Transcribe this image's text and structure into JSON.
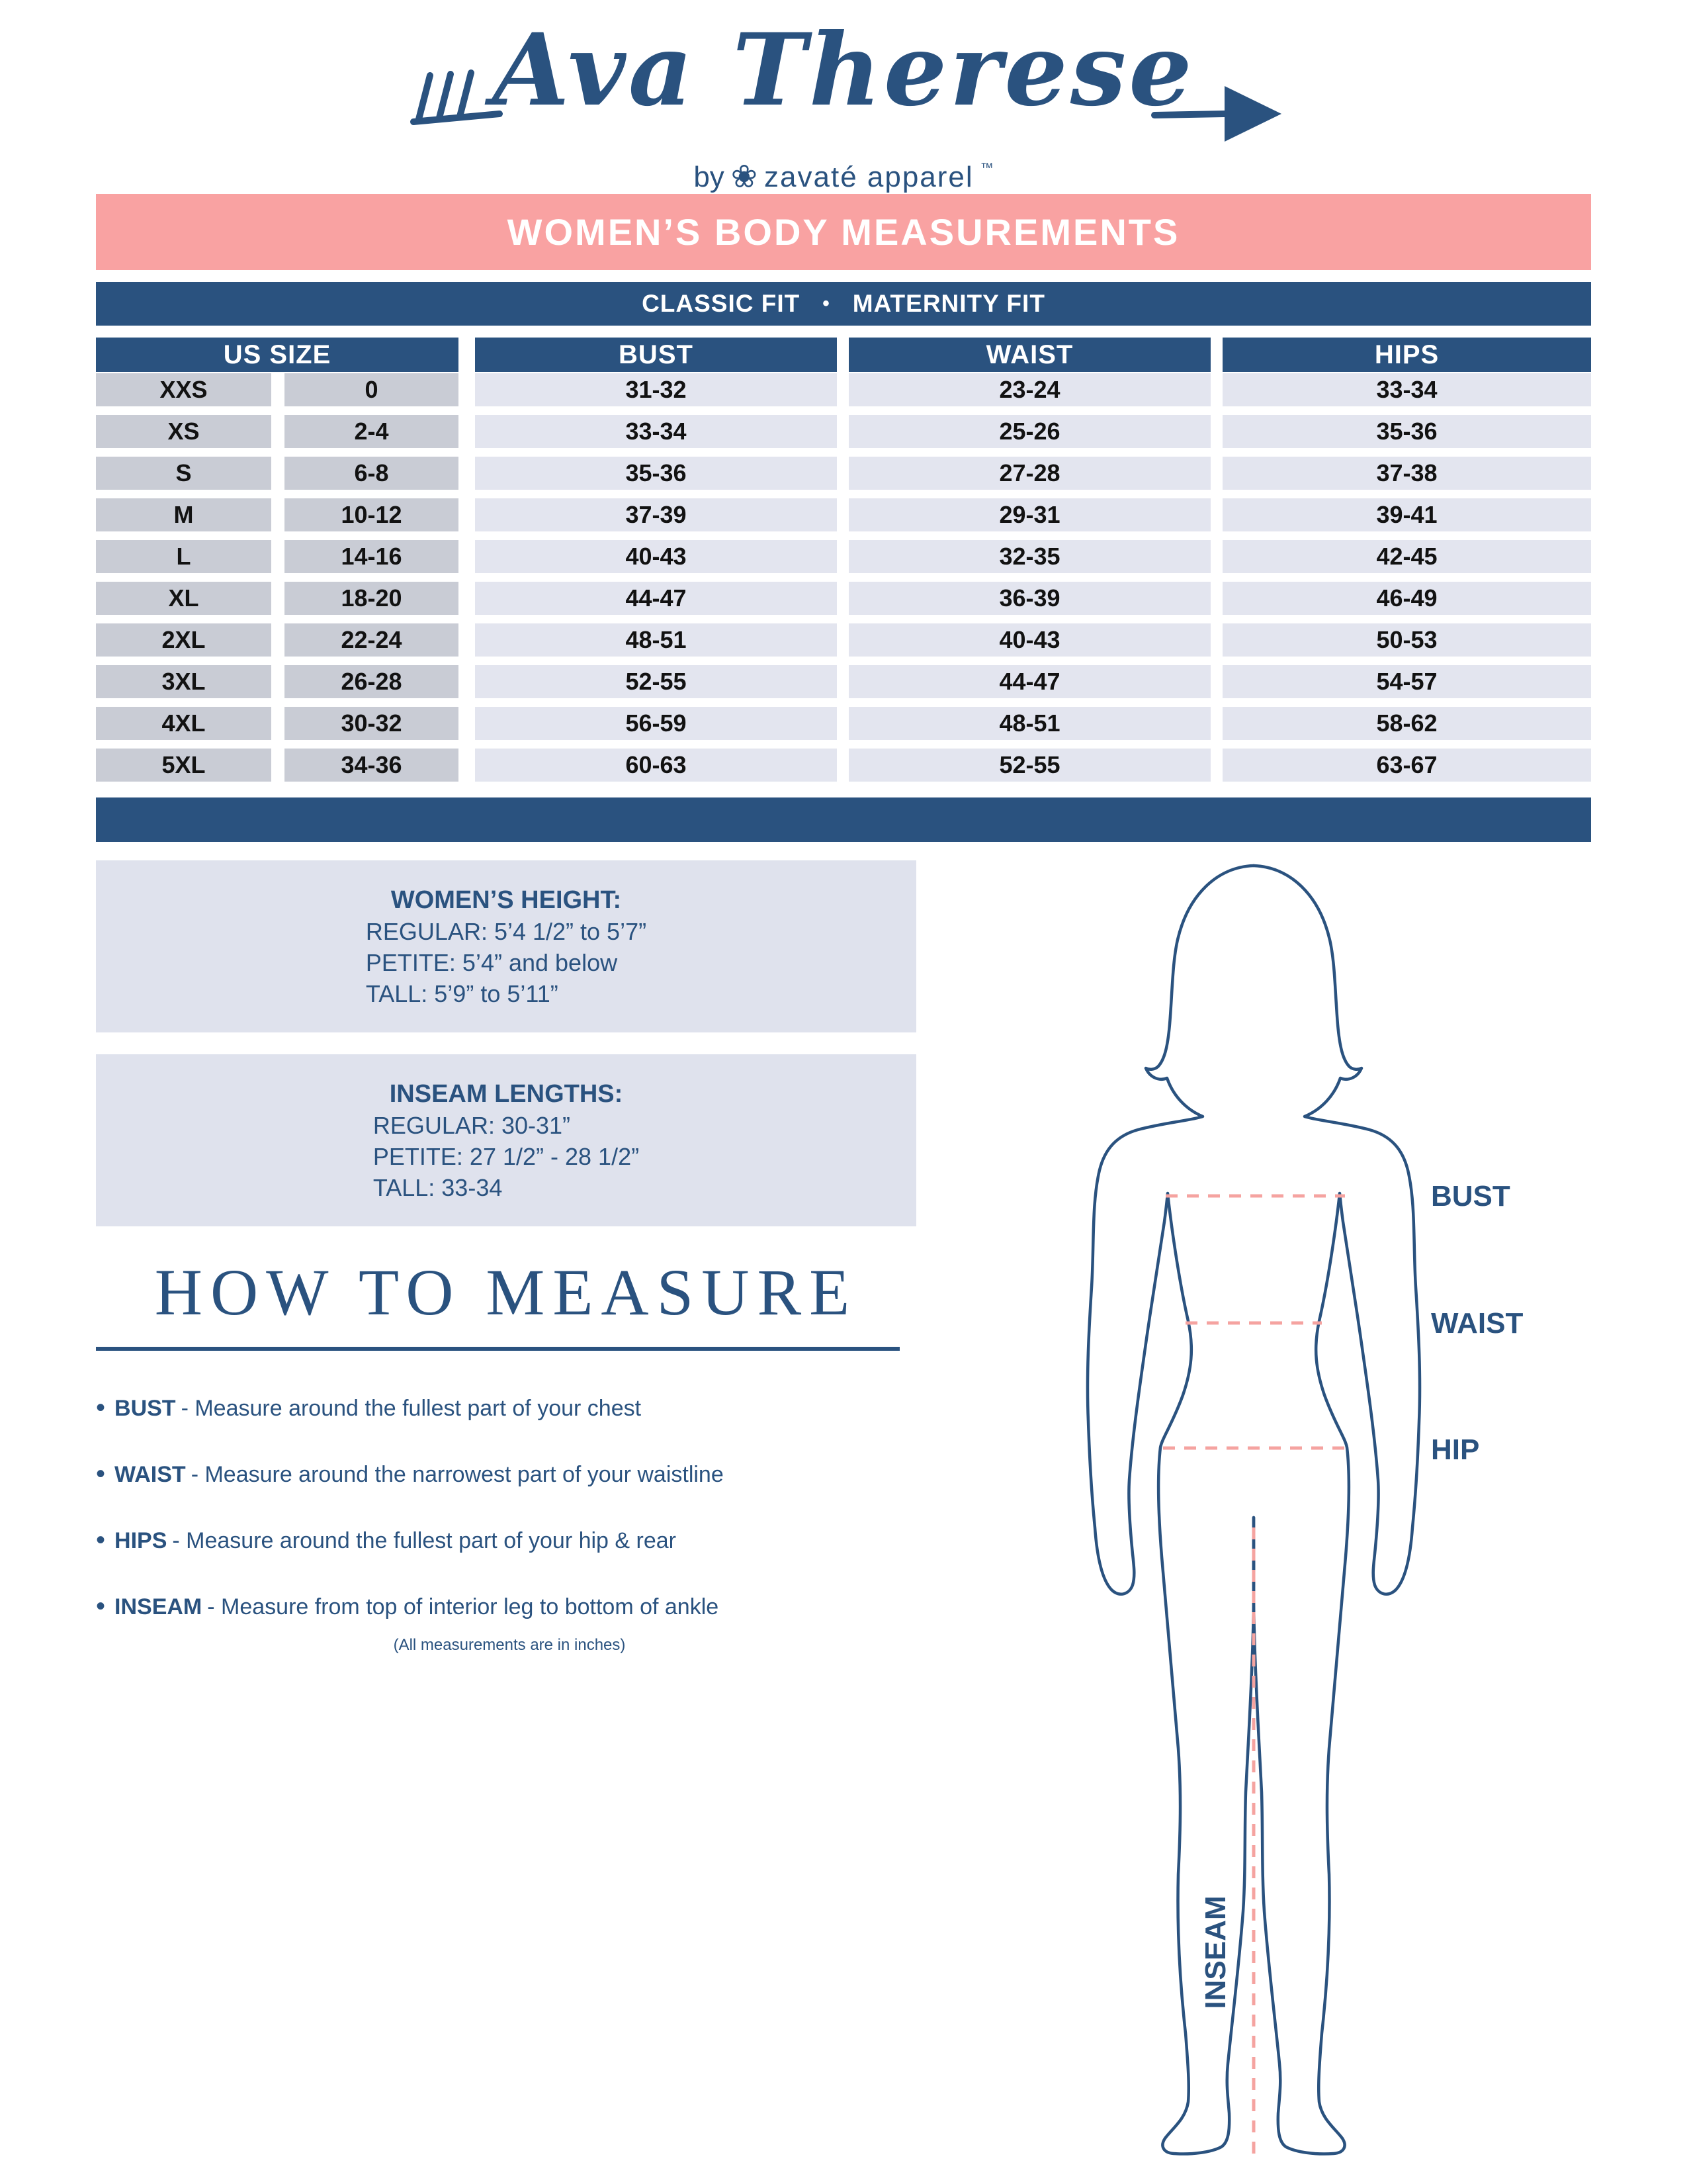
{
  "logo": {
    "brand_script": "Ava Therese",
    "byline_prefix": "by",
    "byline_brand": "zavaté apparel",
    "trademark": "™"
  },
  "banner": {
    "title": "WOMEN’S BODY MEASUREMENTS"
  },
  "fit_bar": {
    "left": "CLASSIC FIT",
    "separator": "•",
    "right": "MATERNITY FIT"
  },
  "table": {
    "headers": {
      "us_size": "US SIZE",
      "bust": "BUST",
      "waist": "WAIST",
      "hips": "HIPS"
    },
    "rows": [
      {
        "label": "XXS",
        "size": "0",
        "bust": "31-32",
        "waist": "23-24",
        "hips": "33-34"
      },
      {
        "label": "XS",
        "size": "2-4",
        "bust": "33-34",
        "waist": "25-26",
        "hips": "35-36"
      },
      {
        "label": "S",
        "size": "6-8",
        "bust": "35-36",
        "waist": "27-28",
        "hips": "37-38"
      },
      {
        "label": "M",
        "size": "10-12",
        "bust": "37-39",
        "waist": "29-31",
        "hips": "39-41"
      },
      {
        "label": "L",
        "size": "14-16",
        "bust": "40-43",
        "waist": "32-35",
        "hips": "42-45"
      },
      {
        "label": "XL",
        "size": "18-20",
        "bust": "44-47",
        "waist": "36-39",
        "hips": "46-49"
      },
      {
        "label": "2XL",
        "size": "22-24",
        "bust": "48-51",
        "waist": "40-43",
        "hips": "50-53"
      },
      {
        "label": "3XL",
        "size": "26-28",
        "bust": "52-55",
        "waist": "44-47",
        "hips": "54-57"
      },
      {
        "label": "4XL",
        "size": "30-32",
        "bust": "56-59",
        "waist": "48-51",
        "hips": "58-62"
      },
      {
        "label": "5XL",
        "size": "34-36",
        "bust": "60-63",
        "waist": "52-55",
        "hips": "63-67"
      }
    ]
  },
  "height_box": {
    "title": "WOMEN’S HEIGHT:",
    "lines": [
      "REGULAR: 5’4 1/2” to 5’7”",
      "PETITE: 5’4” and below",
      "TALL: 5’9” to 5’11”"
    ]
  },
  "inseam_box": {
    "title": "INSEAM LENGTHS:",
    "lines": [
      "REGULAR: 30-31”",
      "PETITE: 27 1/2” - 28 1/2”",
      "TALL: 33-34"
    ]
  },
  "how_to_measure": {
    "title": "HOW TO MEASURE",
    "bullets": [
      {
        "term": "BUST",
        "desc": "- Measure around the fullest part of your chest"
      },
      {
        "term": "WAIST",
        "desc": "- Measure around the narrowest part of your waistline"
      },
      {
        "term": "HIPS",
        "desc": "- Measure around the fullest part of your hip & rear"
      },
      {
        "term": "INSEAM",
        "desc": "- Measure from top of interior leg to bottom of ankle"
      }
    ],
    "note": "(All measurements are in inches)"
  },
  "figure": {
    "labels": {
      "bust": "BUST",
      "waist": "WAIST",
      "hip": "HIP",
      "inseam": "INSEAM"
    }
  },
  "colors": {
    "navy": "#2a527f",
    "pink_banner": "#f9a2a2",
    "dash_pink": "#f5a3a0",
    "cell_dark": "#c9ccd5",
    "cell_light": "#e3e5ef",
    "box_bg": "#dfe2ed"
  }
}
